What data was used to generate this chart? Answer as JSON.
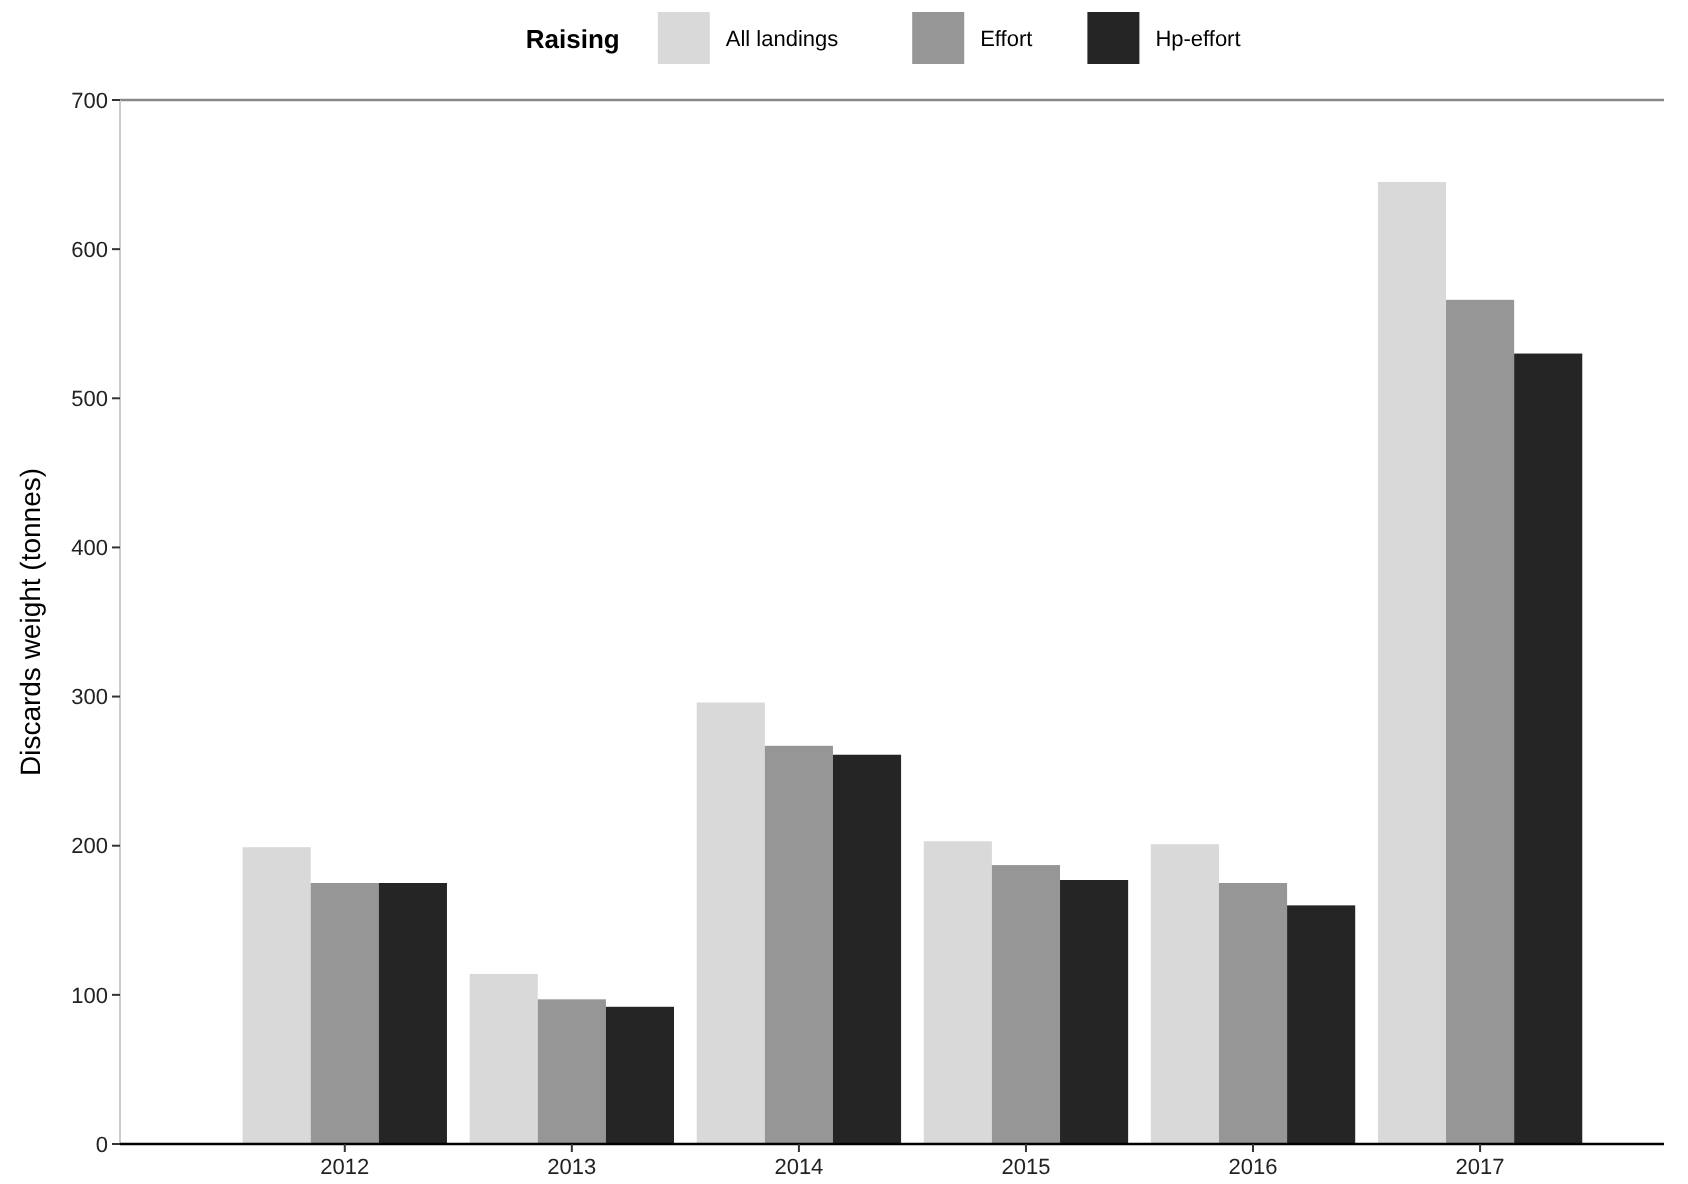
{
  "chart_data": {
    "type": "bar",
    "ylabel": "Discards weight (tonnes)",
    "legend_title": "Raising",
    "legend": "top",
    "categories": [
      "2012",
      "2013",
      "2014",
      "2015",
      "2016",
      "2017"
    ],
    "series": [
      {
        "name": "All landings",
        "color": "#d9d9d9",
        "values": [
          199,
          114,
          296,
          203,
          201,
          645
        ]
      },
      {
        "name": "Effort",
        "color": "#969696",
        "values": [
          175,
          97,
          267,
          187,
          175,
          566
        ]
      },
      {
        "name": "Hp-effort",
        "color": "#252525",
        "values": [
          175,
          92,
          261,
          177,
          160,
          530
        ]
      }
    ],
    "ylim": [
      0,
      700
    ],
    "yticks": [
      0,
      100,
      200,
      300,
      400,
      500,
      600,
      700
    ],
    "grid": false
  }
}
